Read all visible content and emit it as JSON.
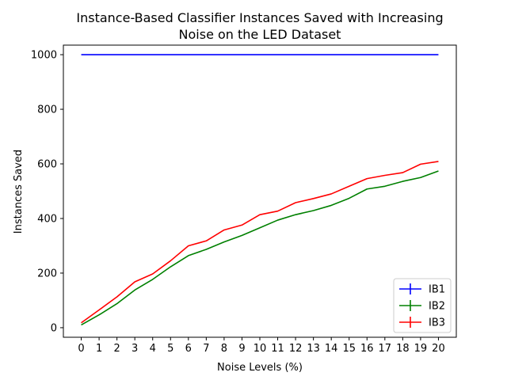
{
  "chart_data": {
    "type": "line",
    "title_lines": [
      "Instance-Based Classifier Instances Saved with Increasing",
      "Noise on the LED Dataset"
    ],
    "xlabel": "Noise Levels (%)",
    "ylabel": "Instances Saved",
    "x": [
      0,
      1,
      2,
      3,
      4,
      5,
      6,
      7,
      8,
      9,
      10,
      11,
      12,
      13,
      14,
      15,
      16,
      17,
      18,
      19,
      20
    ],
    "xlim": [
      -1,
      21
    ],
    "ylim": [
      -35,
      1035
    ],
    "yticks": [
      0,
      200,
      400,
      600,
      800,
      1000
    ],
    "grid": false,
    "legend_position": "lower-right",
    "series": [
      {
        "name": "IB1",
        "color": "#0000ff",
        "values": [
          1000,
          1000,
          1000,
          1000,
          1000,
          1000,
          1000,
          1000,
          1000,
          1000,
          1000,
          1000,
          1000,
          1000,
          1000,
          1000,
          1000,
          1000,
          1000,
          1000,
          1000
        ]
      },
      {
        "name": "IB2",
        "color": "#008000",
        "values": [
          10,
          47,
          88,
          138,
          177,
          223,
          264,
          287,
          314,
          338,
          366,
          394,
          414,
          429,
          448,
          474,
          508,
          518,
          536,
          550,
          574
        ]
      },
      {
        "name": "IB3",
        "color": "#ff0000",
        "values": [
          18,
          65,
          113,
          168,
          197,
          245,
          300,
          318,
          358,
          376,
          414,
          427,
          458,
          473,
          490,
          518,
          546,
          558,
          568,
          599,
          609
        ]
      }
    ]
  }
}
